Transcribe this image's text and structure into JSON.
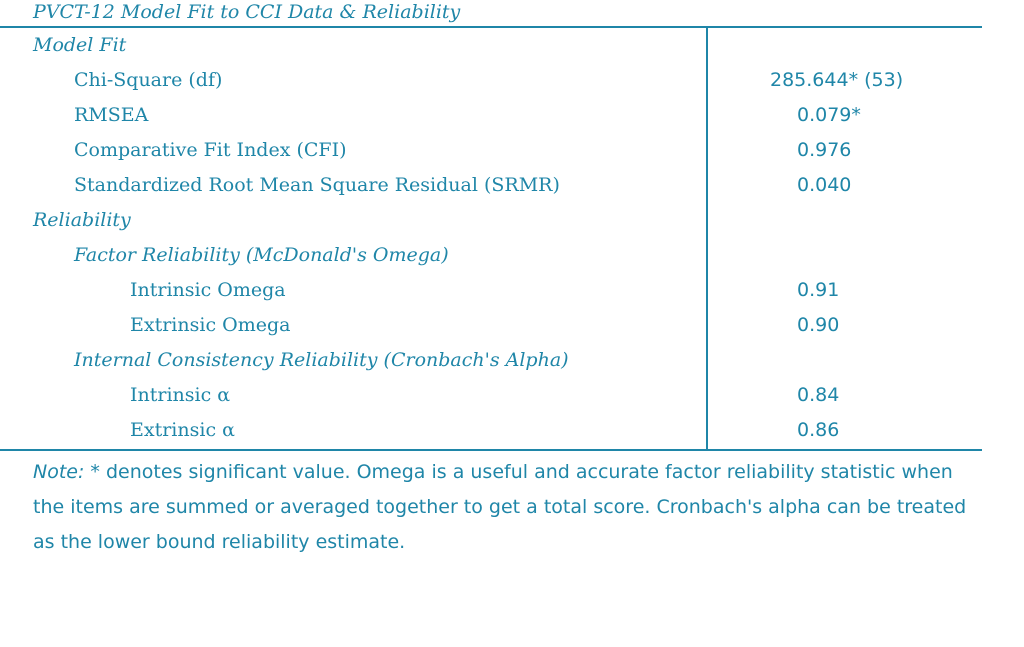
{
  "table": {
    "title": "PVCT-12 Model Fit to CCI Data & Reliability",
    "rows": [
      {
        "label": "Model Fit",
        "value": ""
      },
      {
        "label": "Chi-Square (df)",
        "value": "285.644* (53)"
      },
      {
        "label": "RMSEA",
        "value": "0.079*"
      },
      {
        "label": "Comparative Fit Index (CFI)",
        "value": "0.976"
      },
      {
        "label": "Standardized Root Mean Square Residual (SRMR)",
        "value": "0.040"
      },
      {
        "label": "Reliability",
        "value": ""
      },
      {
        "label": "Factor Reliability (McDonald's Omega)",
        "value": ""
      },
      {
        "label": "Intrinsic Omega",
        "value": "0.91"
      },
      {
        "label": "Extrinsic Omega",
        "value": "0.90"
      },
      {
        "label": "Internal Consistency Reliability (Cronbach's Alpha)",
        "value": ""
      },
      {
        "label": "Intrinsic α",
        "value": "0.84"
      },
      {
        "label": "Extrinsic α",
        "value": "0.86"
      }
    ]
  },
  "note": {
    "label": "Note:",
    "text": " * denotes significant value. Omega is a useful and accurate factor reliability statistic when the items are summed or averaged together to get a total score. Cronbach's alpha can be treated as the lower bound reliability estimate."
  },
  "colors": {
    "accent": "#1f86a8",
    "background": "#ffffff"
  }
}
